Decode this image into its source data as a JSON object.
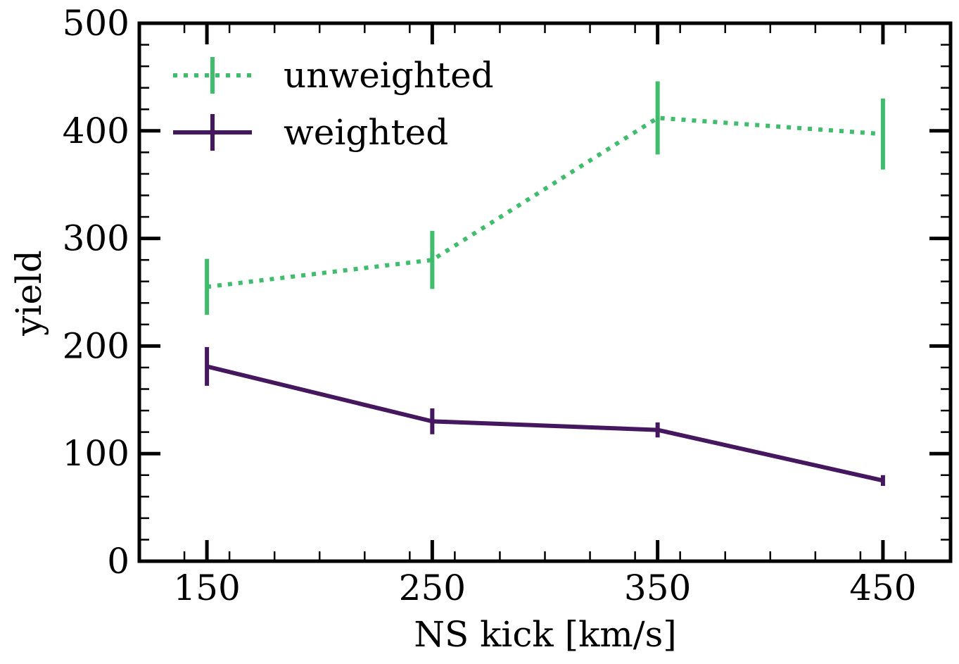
{
  "chart_data": {
    "type": "line",
    "title": "",
    "xlabel": "NS kick [km/s]",
    "ylabel": "yield",
    "xlim": [
      120,
      480
    ],
    "ylim": [
      0,
      500
    ],
    "xticks": [
      150,
      250,
      350,
      450
    ],
    "yticks": [
      0,
      100,
      200,
      300,
      400,
      500
    ],
    "grid": false,
    "legend_position": "top-left",
    "series": [
      {
        "name": "unweighted",
        "color": "#3fbc6c",
        "linestyle": "dotted",
        "x": [
          150,
          250,
          350,
          450
        ],
        "y": [
          255,
          280,
          412,
          397
        ],
        "yerr": [
          26,
          27,
          34,
          33
        ]
      },
      {
        "name": "weighted",
        "color": "#45175f",
        "linestyle": "solid",
        "x": [
          150,
          250,
          350,
          450
        ],
        "y": [
          181,
          130,
          122,
          75
        ],
        "yerr": [
          18,
          12,
          7,
          5
        ]
      }
    ]
  }
}
